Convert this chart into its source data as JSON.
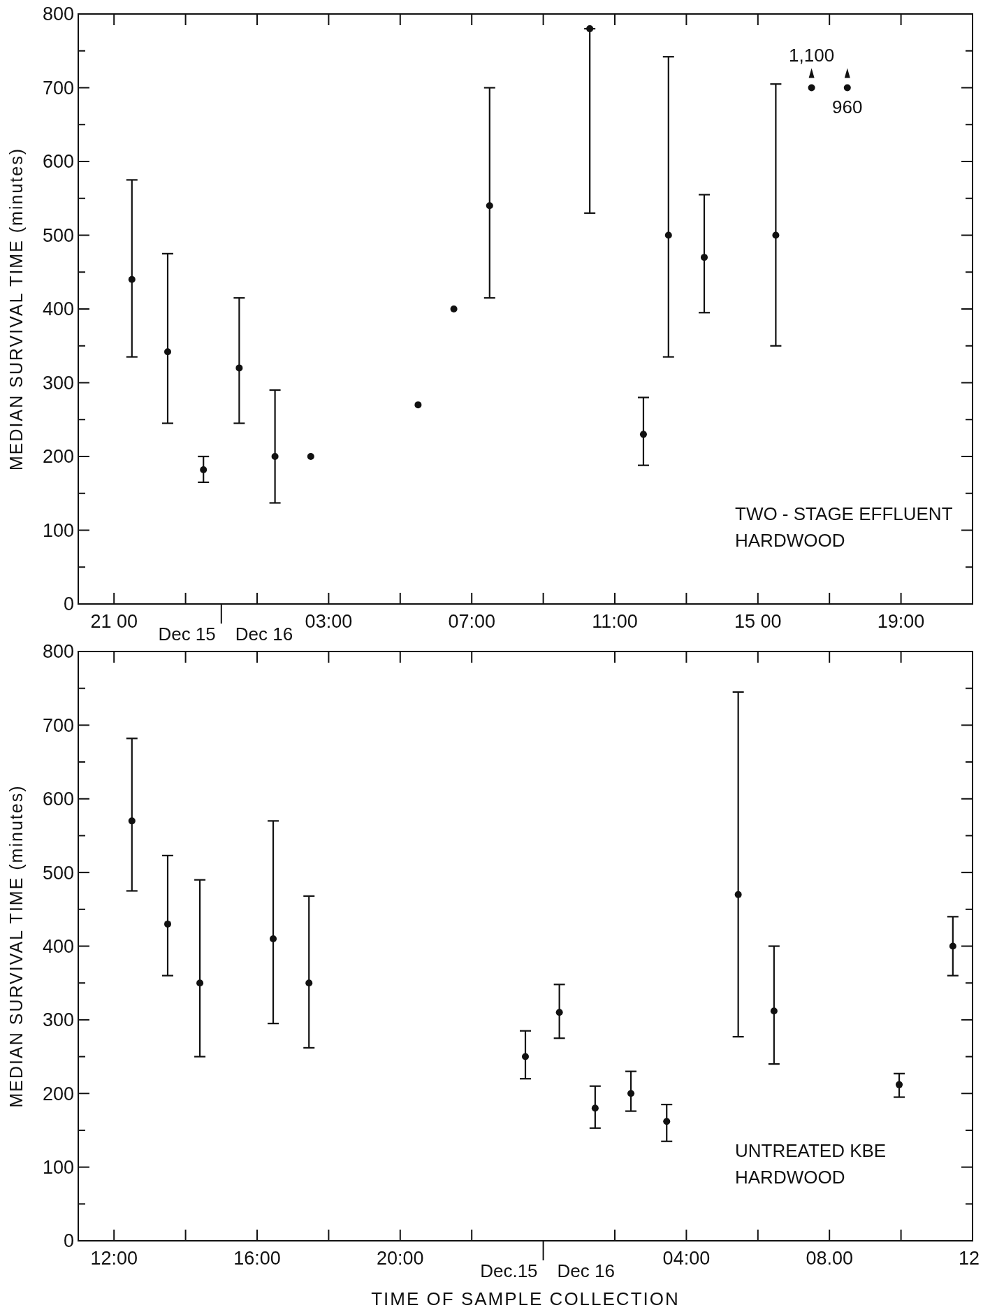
{
  "chart_data": [
    {
      "type": "scatter",
      "ylabel": "MEDIAN SURVIVAL TIME (minutes)",
      "marker": "circle",
      "xlim": [
        "--12-15T20:00",
        "--12-16T21:00"
      ],
      "ylim": [
        0,
        800
      ],
      "xticks": [
        {
          "value": "--12-15T21:00",
          "label": "21 00"
        },
        {
          "value": "--12-15T23:00",
          "label": null
        },
        {
          "value": "--12-16T01:00",
          "label": null
        },
        {
          "value": "--12-16T03:00",
          "label": "03:00"
        },
        {
          "value": "--12-16T05:00",
          "label": null
        },
        {
          "value": "--12-16T07:00",
          "label": "07:00"
        },
        {
          "value": "--12-16T09:00",
          "label": null
        },
        {
          "value": "--12-16T11:00",
          "label": "11:00"
        },
        {
          "value": "--12-16T13:00",
          "label": null
        },
        {
          "value": "--12-16T15:00",
          "label": "15 00"
        },
        {
          "value": "--12-16T17:00",
          "label": null
        },
        {
          "value": "--12-16T19:00",
          "label": "19:00"
        }
      ],
      "yticks": [
        0,
        {
          "value": 50,
          "label": null
        },
        100,
        {
          "value": 150,
          "label": null
        },
        200,
        {
          "value": 250,
          "label": null
        },
        300,
        {
          "value": 350,
          "label": null
        },
        400,
        {
          "value": 450,
          "label": null
        },
        500,
        {
          "value": 550,
          "label": null
        },
        600,
        {
          "value": 650,
          "label": null
        },
        700,
        {
          "value": 750,
          "label": null
        },
        800
      ],
      "x": [
        "--12-15T21:30",
        "--12-15T22:30",
        "--12-15T23:30",
        "--12-16T00:30",
        "--12-16T01:30",
        "--12-16T02:30",
        "--12-16T05:30",
        "--12-16T06:30",
        "--12-16T07:30",
        "--12-16T10:18",
        "--12-16T11:48",
        "--12-16T12:30",
        "--12-16T13:30",
        "--12-16T15:30"
      ],
      "series": [
        {
          "color": "#111111",
          "values": [
            440,
            342,
            182,
            320,
            200,
            200,
            270,
            400,
            540,
            780,
            230,
            500,
            470,
            500
          ],
          "errors": [
            [
              335,
              575
            ],
            [
              245,
              475
            ],
            [
              165,
              200
            ],
            [
              245,
              415
            ],
            [
              137,
              290
            ],
            null,
            null,
            null,
            [
              415,
              700
            ],
            [
              530,
              780
            ],
            [
              188,
              280
            ],
            [
              335,
              742
            ],
            [
              395,
              555
            ],
            [
              350,
              705
            ]
          ]
        }
      ],
      "annotations": [
        "TWO - STAGE EFFLUENT",
        "HARDWOOD",
        "Dec 15",
        "Dec 16",
        {
          "text": "1,100",
          "x": "--12-16T16:30",
          "y": 700
        },
        {
          "text": "960",
          "x": "--12-16T17:30",
          "y": 700
        }
      ]
    },
    {
      "type": "scatter",
      "ylabel": "MEDIAN SURVIVAL TIME (minutes)",
      "xlabel": "TIME OF SAMPLE COLLECTION",
      "marker": "circle",
      "xlim": [
        "--12-15T11:00",
        "--12-16T12:00"
      ],
      "ylim": [
        0,
        800
      ],
      "xticks": [
        {
          "value": "--12-15T12:00",
          "label": "12:00"
        },
        {
          "value": "--12-15T14:00",
          "label": null
        },
        {
          "value": "--12-15T16:00",
          "label": "16:00"
        },
        {
          "value": "--12-15T18:00",
          "label": null
        },
        {
          "value": "--12-15T20:00",
          "label": "20:00"
        },
        {
          "value": "--12-15T22:00",
          "label": null
        },
        {
          "value": "--12-16T02:00",
          "label": null
        },
        {
          "value": "--12-16T04:00",
          "label": "04:00"
        },
        {
          "value": "--12-16T06:00",
          "label": null
        },
        {
          "value": "--12-16T08:00",
          "label": "08.00"
        },
        {
          "value": "--12-16T10:00",
          "label": null
        },
        {
          "value": "--12-16T12:00",
          "label": "12"
        }
      ],
      "yticks": [
        0,
        {
          "value": 50,
          "label": null
        },
        100,
        {
          "value": 150,
          "label": null
        },
        200,
        {
          "value": 250,
          "label": null
        },
        300,
        {
          "value": 350,
          "label": null
        },
        400,
        {
          "value": 450,
          "label": null
        },
        500,
        {
          "value": 550,
          "label": null
        },
        600,
        {
          "value": 650,
          "label": null
        },
        700,
        {
          "value": 750,
          "label": null
        },
        800
      ],
      "x": [
        "--12-15T12:30",
        "--12-15T13:30",
        "--12-15T14:24",
        "--12-15T16:27",
        "--12-15T17:27",
        "--12-15T23:30",
        "--12-16T00:27",
        "--12-16T01:27",
        "--12-16T02:27",
        "--12-16T03:27",
        "--12-16T05:27",
        "--12-16T06:27",
        "--12-16T09:57",
        "--12-16T11:27"
      ],
      "series": [
        {
          "color": "#111111",
          "values": [
            570,
            430,
            350,
            410,
            350,
            250,
            310,
            180,
            200,
            162,
            470,
            312,
            212,
            400
          ],
          "errors": [
            [
              475,
              682
            ],
            [
              360,
              523
            ],
            [
              250,
              490
            ],
            [
              295,
              570
            ],
            [
              262,
              468
            ],
            [
              220,
              285
            ],
            [
              275,
              348
            ],
            [
              153,
              210
            ],
            [
              176,
              230
            ],
            [
              135,
              185
            ],
            [
              277,
              745
            ],
            [
              240,
              400
            ],
            [
              195,
              227
            ],
            [
              360,
              440
            ]
          ]
        }
      ],
      "annotations": [
        "UNTREATED KBE",
        "HARDWOOD",
        "Dec.15",
        "Dec 16"
      ]
    }
  ]
}
